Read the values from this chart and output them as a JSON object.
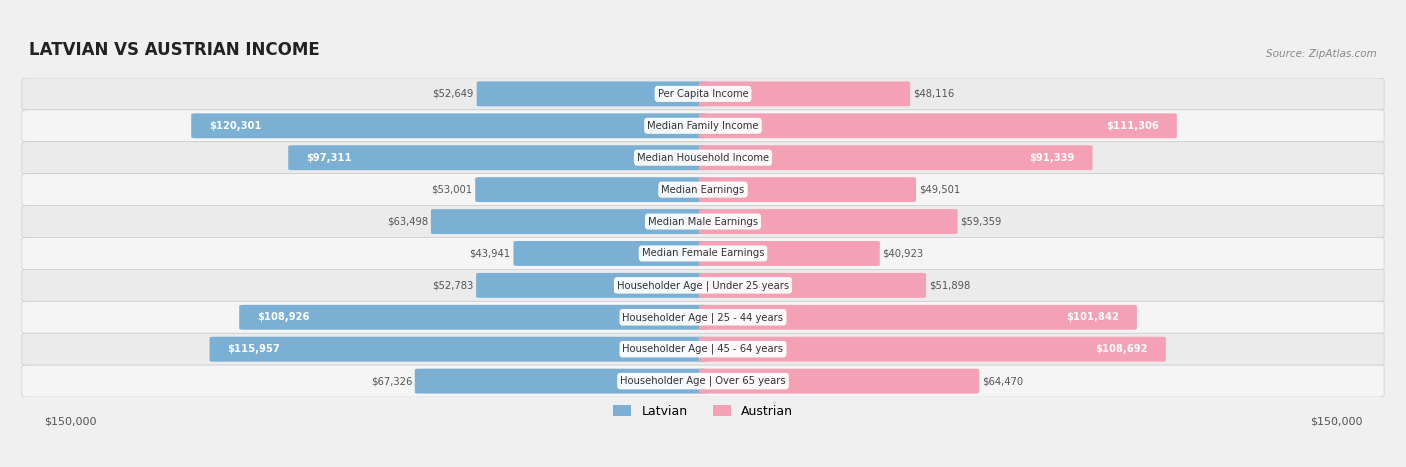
{
  "title": "LATVIAN VS AUSTRIAN INCOME",
  "source": "Source: ZipAtlas.com",
  "categories": [
    "Per Capita Income",
    "Median Family Income",
    "Median Household Income",
    "Median Earnings",
    "Median Male Earnings",
    "Median Female Earnings",
    "Householder Age | Under 25 years",
    "Householder Age | 25 - 44 years",
    "Householder Age | 45 - 64 years",
    "Householder Age | Over 65 years"
  ],
  "latvian_values": [
    52649,
    120301,
    97311,
    53001,
    63498,
    43941,
    52783,
    108926,
    115957,
    67326
  ],
  "austrian_values": [
    48116,
    111306,
    91339,
    49501,
    59359,
    40923,
    51898,
    101842,
    108692,
    64470
  ],
  "max_value": 150000,
  "latvian_color": "#7bafd4",
  "latvian_color_dark": "#5b9ac4",
  "austrian_color": "#f4a0b5",
  "austrian_color_dark": "#e8789a",
  "label_color_outside": "#555555",
  "label_color_inside": "#ffffff",
  "background_color": "#f5f5f5",
  "row_bg_color": "#eeeeee",
  "row_bg_light": "#f9f9f9",
  "threshold_inside": 80000,
  "legend_latvian": "Latvian",
  "legend_austrian": "Austrian"
}
